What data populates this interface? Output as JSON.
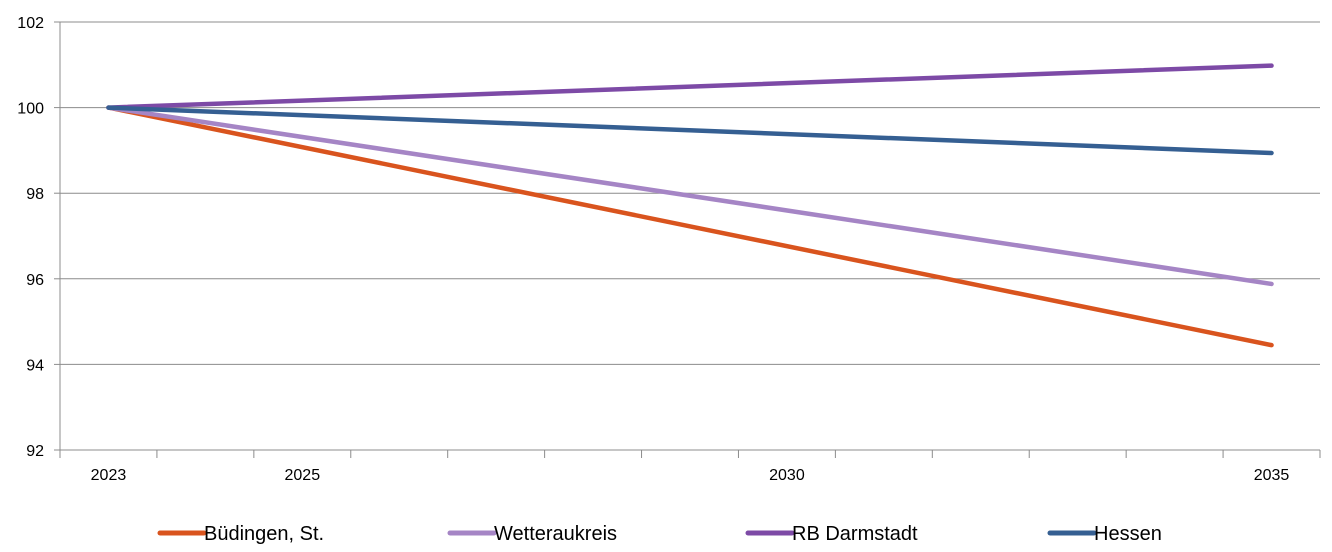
{
  "chart_data": {
    "type": "line",
    "x": [
      2023,
      2035
    ],
    "x_ticks": [
      2023,
      2024,
      2025,
      2026,
      2027,
      2028,
      2029,
      2030,
      2031,
      2032,
      2033,
      2034,
      2035
    ],
    "x_tick_labels": {
      "2023": "2023",
      "2025": "2025",
      "2030": "2030",
      "2035": "2035"
    },
    "ylim": [
      92,
      102
    ],
    "y_ticks": [
      92,
      94,
      96,
      98,
      100,
      102
    ],
    "grid": true,
    "legend_position": "bottom",
    "series": [
      {
        "name": "Büdingen, St.",
        "color": "#d9541e",
        "values": [
          100,
          94.45
        ]
      },
      {
        "name": "Wetteraukreis",
        "color": "#a585c5",
        "values": [
          100,
          95.88
        ]
      },
      {
        "name": "RB Darmstadt",
        "color": "#7d4aa6",
        "values": [
          100,
          100.98
        ]
      },
      {
        "name": "Hessen",
        "color": "#355f92",
        "values": [
          100,
          98.94
        ]
      }
    ]
  }
}
